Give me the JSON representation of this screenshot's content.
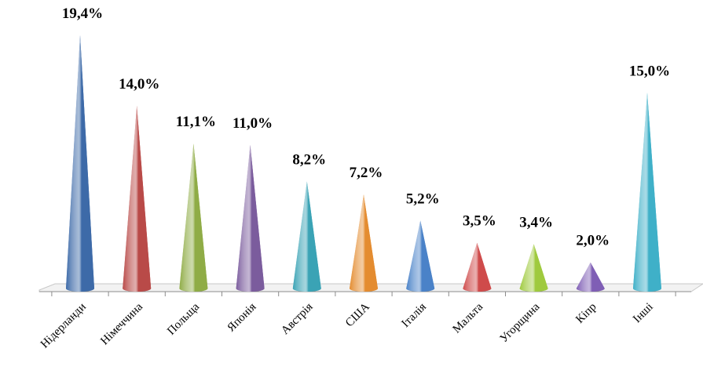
{
  "chart_data": {
    "type": "bar",
    "categories": [
      "Нідерланди",
      "Німеччина",
      "Польща",
      "Японія",
      "Австрія",
      "США",
      "Італія",
      "Мальта",
      "Угорщина",
      "Кіпр",
      "Інші"
    ],
    "values": [
      19.4,
      14.0,
      11.1,
      11.0,
      8.2,
      7.2,
      5.2,
      3.5,
      3.4,
      2.0,
      15.0
    ],
    "value_labels": [
      "19,4%",
      "14,0%",
      "11,1%",
      "11,0%",
      "8,2%",
      "7,2%",
      "5,2%",
      "3,5%",
      "3,4%",
      "2,0%",
      "15,0%"
    ],
    "colors": [
      "#3d6aa8",
      "#b94a48",
      "#8fac46",
      "#7b5c9d",
      "#3aa3b5",
      "#e48c30",
      "#4a82c8",
      "#cf4b4b",
      "#9fca3e",
      "#7f5eb5",
      "#3fb0c8"
    ]
  }
}
